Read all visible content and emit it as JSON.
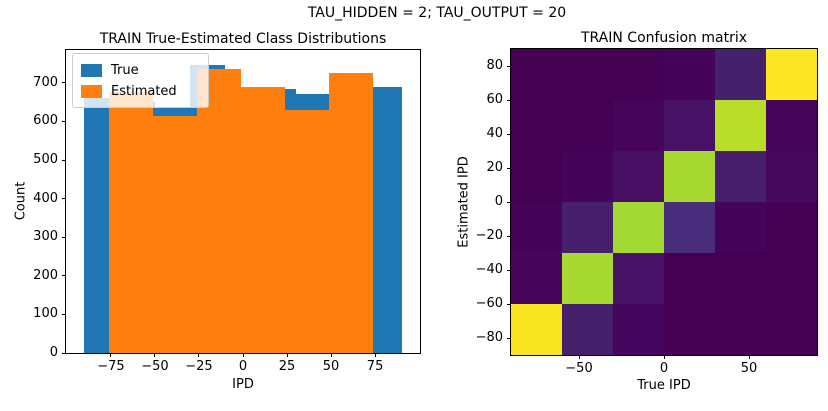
{
  "suptitle": "TAU_HIDDEN = 2; TAU_OUTPUT = 20",
  "chart_data": [
    {
      "type": "bar",
      "subtype": "overlaid-histograms",
      "title": "TRAIN True-Estimated Class Distributions",
      "xlabel": "IPD",
      "ylabel": "Count",
      "xlim": [
        -100.5,
        100.5
      ],
      "ylim": [
        0,
        785
      ],
      "xticks": [
        -75,
        -50,
        -25,
        0,
        25,
        50,
        75
      ],
      "yticks": [
        0,
        100,
        200,
        300,
        400,
        500,
        600,
        700
      ],
      "grid": false,
      "legend_position": "upper left",
      "series": [
        {
          "name": "True",
          "color": "#1f77b4",
          "bin_edges": [
            -90,
            -70,
            -50,
            -30,
            -10,
            10,
            30,
            50,
            70,
            90
          ],
          "counts": [
            660,
            650,
            635,
            745,
            680,
            685,
            670,
            700,
            690
          ],
          "note": "bins 2, 5 and 8 are occluded by the Estimated series; their heights are estimates"
        },
        {
          "name": "Estimated",
          "color": "#ff7f0e",
          "bin_edges": [
            -76,
            -51,
            -26,
            -1,
            24,
            49,
            74
          ],
          "counts": [
            675,
            615,
            735,
            690,
            630,
            725
          ]
        }
      ]
    },
    {
      "type": "heatmap",
      "title": "TRAIN Confusion matrix",
      "xlabel": "True IPD",
      "ylabel": "Estimated IPD",
      "colormap": "viridis",
      "xlim": [
        -90,
        90
      ],
      "ylim": [
        -90,
        90
      ],
      "xticks": [
        -50,
        0,
        50
      ],
      "yticks": [
        80,
        60,
        40,
        20,
        0,
        -20,
        -40,
        -60,
        -80
      ],
      "col_centers_left_to_right": [
        -75,
        -45,
        -15,
        15,
        45,
        75
      ],
      "row_centers_top_to_bottom": [
        75,
        45,
        15,
        -15,
        -45,
        -75
      ],
      "relative_values_rows_top_to_bottom": [
        [
          0.0,
          0.0,
          0.0,
          0.02,
          0.11,
          1.0
        ],
        [
          0.0,
          0.0,
          0.02,
          0.07,
          0.92,
          0.02
        ],
        [
          0.0,
          0.01,
          0.05,
          0.9,
          0.11,
          0.04
        ],
        [
          0.01,
          0.1,
          0.9,
          0.13,
          0.01,
          0.0
        ],
        [
          0.03,
          0.9,
          0.07,
          0.0,
          0.0,
          0.0
        ],
        [
          1.0,
          0.11,
          0.03,
          0.0,
          0.0,
          0.0
        ]
      ],
      "cell_colors_rows_top_to_bottom": [
        [
          "#440154",
          "#440154",
          "#440154",
          "#44045a",
          "#45216b",
          "#fde725"
        ],
        [
          "#440154",
          "#440154",
          "#44055b",
          "#471266",
          "#b8de29",
          "#45055b"
        ],
        [
          "#440154",
          "#44045a",
          "#460f63",
          "#a8d933",
          "#461e69",
          "#45095e"
        ],
        [
          "#44045a",
          "#46206b",
          "#a3d933",
          "#472d7b",
          "#44045a",
          "#440154"
        ],
        [
          "#45065c",
          "#a8d933",
          "#471266",
          "#440154",
          "#440154",
          "#440154"
        ],
        [
          "#f6e51f",
          "#46216b",
          "#45075d",
          "#440154",
          "#440154",
          "#440154"
        ]
      ]
    }
  ]
}
